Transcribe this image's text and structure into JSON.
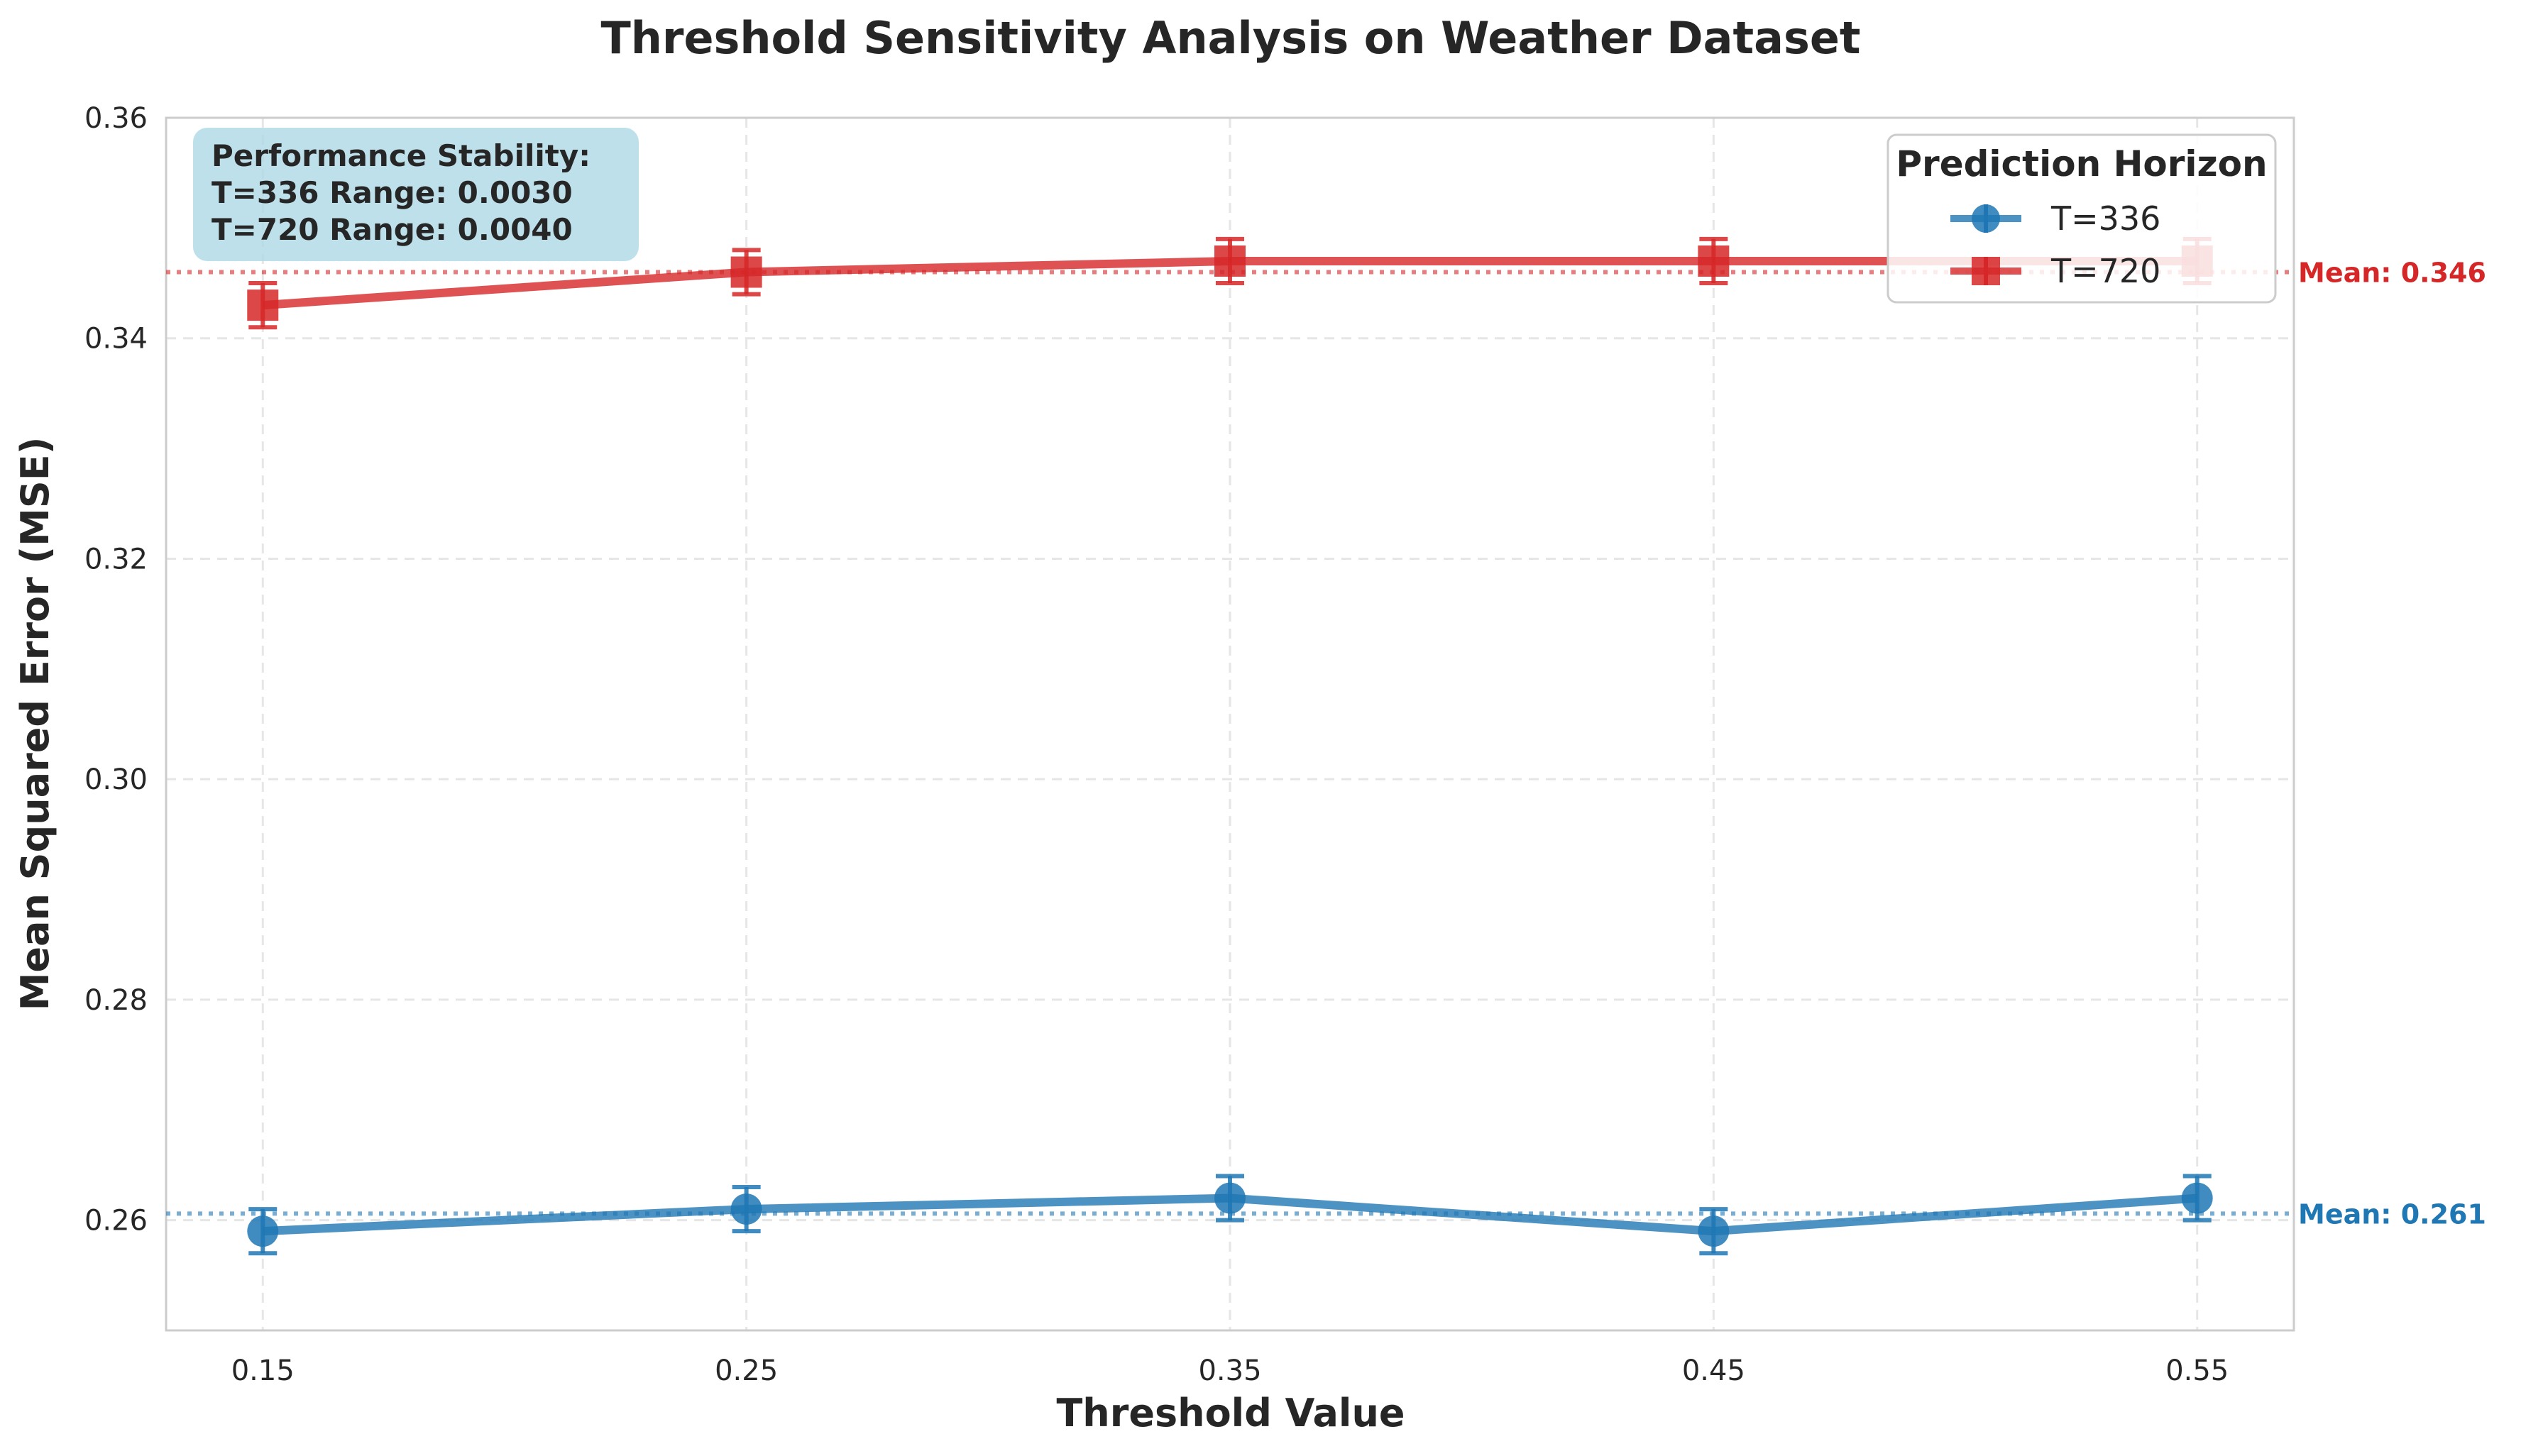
{
  "chart_data": {
    "type": "line",
    "title": "Threshold Sensitivity Analysis on Weather Dataset",
    "xlabel": "Threshold Value",
    "ylabel": "Mean Squared Error (MSE)",
    "x": [
      0.15,
      0.25,
      0.35,
      0.45,
      0.55
    ],
    "x_tick_labels": [
      "0.15",
      "0.25",
      "0.35",
      "0.45",
      "0.55"
    ],
    "xlim": [
      0.13,
      0.57
    ],
    "ylim": [
      0.25,
      0.36
    ],
    "y_ticks": [
      0.26,
      0.28,
      0.3,
      0.32,
      0.34,
      0.36
    ],
    "y_tick_labels": [
      "0.26",
      "0.28",
      "0.30",
      "0.32",
      "0.34",
      "0.36"
    ],
    "grid": true,
    "legend": {
      "title": "Prediction Horizon",
      "placement": "top-right"
    },
    "series": [
      {
        "name": "T=336",
        "color": "#1f77b4",
        "marker": "circle",
        "values": [
          0.259,
          0.261,
          0.262,
          0.259,
          0.262
        ],
        "error": [
          0.002,
          0.002,
          0.002,
          0.002,
          0.002
        ],
        "mean": 0.2606,
        "mean_label": "Mean: 0.261"
      },
      {
        "name": "T=720",
        "color": "#d62728",
        "marker": "square",
        "values": [
          0.343,
          0.346,
          0.347,
          0.347,
          0.347
        ],
        "error": [
          0.002,
          0.002,
          0.002,
          0.002,
          0.002
        ],
        "mean": 0.346,
        "mean_label": "Mean: 0.346"
      }
    ],
    "annotation": {
      "lines": [
        "Performance Stability:",
        "T=336 Range: 0.0030",
        "T=720 Range: 0.0040"
      ],
      "background": "#add8e6"
    }
  }
}
